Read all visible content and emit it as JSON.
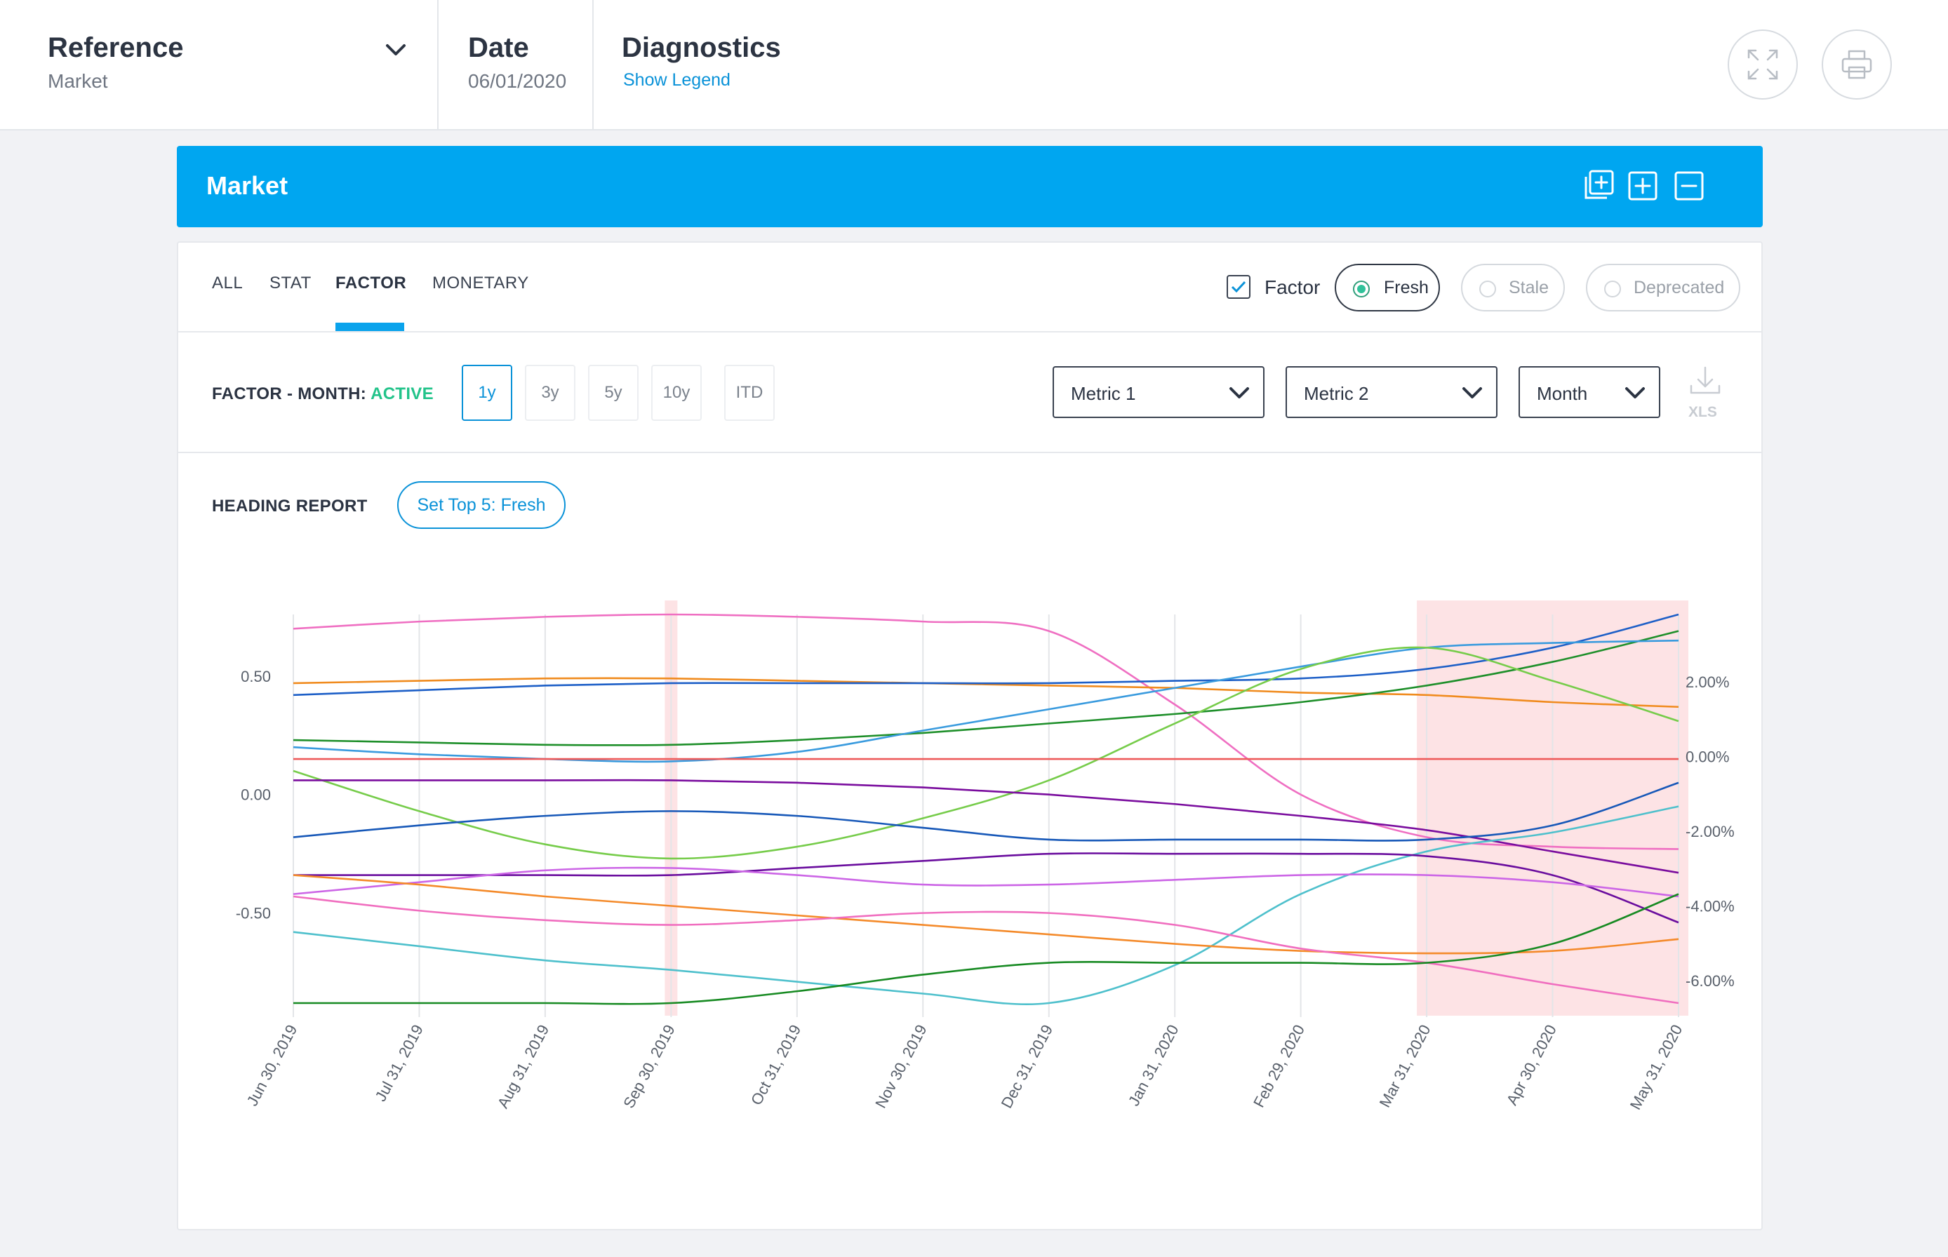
{
  "header": {
    "reference": {
      "title": "Reference",
      "value": "Market"
    },
    "date": {
      "title": "Date",
      "value": "06/01/2020"
    },
    "diagnostics": {
      "title": "Diagnostics",
      "link": "Show Legend"
    },
    "icons": [
      "expand-icon",
      "print-icon"
    ]
  },
  "market_bar": {
    "title": "Market",
    "icons": [
      "add-copy-icon",
      "add-box-icon",
      "remove-box-icon"
    ],
    "color": "#00a6f0"
  },
  "tabs": {
    "items": [
      "ALL",
      "STAT",
      "FACTOR",
      "MONETARY"
    ],
    "active": "FACTOR"
  },
  "filters": {
    "factor_label": "Factor",
    "factor_checked": true,
    "options": [
      {
        "label": "Fresh",
        "selected": true
      },
      {
        "label": "Stale",
        "selected": false
      },
      {
        "label": "Deprecated",
        "selected": false
      }
    ]
  },
  "controls": {
    "label_prefix": "FACTOR - MONTH: ",
    "label_status": "ACTIVE",
    "ranges": [
      "1y",
      "3y",
      "5y",
      "10y",
      "ITD"
    ],
    "active_range": "1y",
    "selects": [
      "Metric 1",
      "Metric 2",
      "Month"
    ],
    "export_label": "XLS"
  },
  "report": {
    "label": "HEADING REPORT",
    "button": "Set Top 5: Fresh"
  },
  "chart_data": {
    "type": "line",
    "x": [
      "Jun 30, 2019",
      "Jul 31, 2019",
      "Aug 31, 2019",
      "Sep 30, 2019",
      "Oct 31, 2019",
      "Nov 30, 2019",
      "Dec 31, 2019",
      "Jan 31, 2020",
      "Feb 29, 2020",
      "Mar 31, 2020",
      "Apr 30, 2020",
      "May 31, 2020"
    ],
    "y_left": {
      "ticks": [
        "0.50",
        "0.00",
        "-0.50"
      ],
      "tick_values": [
        0.5,
        0.0,
        -0.5
      ],
      "range": [
        -0.88,
        0.76
      ]
    },
    "y_right": {
      "ticks": [
        "2.00%",
        "0.00%",
        "-2.00%",
        "-4.00%",
        "-6.00%"
      ],
      "tick_values": [
        2,
        0,
        -2,
        -4,
        -6
      ],
      "range": [
        -6.6,
        3.8
      ]
    },
    "highlight_bands": [
      {
        "from": "Sep 30, 2019",
        "to": "Sep 30, 2019",
        "color": "#fde3e5"
      },
      {
        "from": "Mar 31, 2020",
        "to": "May 31, 2020",
        "color": "#fde3e5"
      }
    ],
    "grid": "vertical",
    "series": [
      {
        "color": "#ef6fc2",
        "values": [
          0.7,
          0.73,
          0.75,
          0.76,
          0.75,
          0.73,
          0.69,
          0.38,
          0.0,
          -0.18,
          -0.22,
          -0.23
        ]
      },
      {
        "color": "#f08b1e",
        "values": [
          0.47,
          0.48,
          0.49,
          0.49,
          0.48,
          0.47,
          0.46,
          0.45,
          0.43,
          0.42,
          0.39,
          0.37
        ]
      },
      {
        "color": "#1d5fc7",
        "values": [
          0.42,
          0.44,
          0.46,
          0.47,
          0.47,
          0.47,
          0.47,
          0.48,
          0.49,
          0.53,
          0.62,
          0.76
        ]
      },
      {
        "color": "#1e8f2a",
        "values": [
          0.23,
          0.22,
          0.21,
          0.21,
          0.23,
          0.26,
          0.3,
          0.34,
          0.39,
          0.46,
          0.56,
          0.69
        ]
      },
      {
        "color": "#3a9bde",
        "values": [
          0.2,
          0.17,
          0.15,
          0.14,
          0.18,
          0.27,
          0.36,
          0.45,
          0.54,
          0.62,
          0.64,
          0.65
        ]
      },
      {
        "color": "#76cc4a",
        "values": [
          0.1,
          -0.07,
          -0.21,
          -0.27,
          -0.22,
          -0.1,
          0.06,
          0.3,
          0.53,
          0.62,
          0.48,
          0.31
        ]
      },
      {
        "color": "#ee5a5a",
        "values": [
          0.15,
          0.15,
          0.15,
          0.15,
          0.15,
          0.15,
          0.15,
          0.15,
          0.15,
          0.15,
          0.15,
          0.15
        ]
      },
      {
        "color": "#7a0d9e",
        "values": [
          0.06,
          0.06,
          0.06,
          0.06,
          0.05,
          0.03,
          0.0,
          -0.04,
          -0.09,
          -0.15,
          -0.24,
          -0.33
        ]
      },
      {
        "color": "#1758b8",
        "values": [
          -0.18,
          -0.13,
          -0.09,
          -0.07,
          -0.09,
          -0.14,
          -0.19,
          -0.19,
          -0.19,
          -0.19,
          -0.13,
          0.05
        ]
      },
      {
        "color": "#4ec0cc",
        "values": [
          -0.58,
          -0.64,
          -0.7,
          -0.74,
          -0.79,
          -0.84,
          -0.88,
          -0.72,
          -0.42,
          -0.24,
          -0.16,
          -0.05
        ]
      },
      {
        "color": "#6a0d9e",
        "values": [
          -0.34,
          -0.34,
          -0.34,
          -0.34,
          -0.31,
          -0.28,
          -0.25,
          -0.25,
          -0.25,
          -0.26,
          -0.34,
          -0.54
        ]
      },
      {
        "color": "#cc66e6",
        "values": [
          -0.42,
          -0.37,
          -0.32,
          -0.31,
          -0.34,
          -0.38,
          -0.38,
          -0.36,
          -0.34,
          -0.34,
          -0.37,
          -0.43
        ]
      },
      {
        "color": "#f48a2a",
        "values": [
          -0.34,
          -0.38,
          -0.43,
          -0.47,
          -0.51,
          -0.55,
          -0.59,
          -0.63,
          -0.66,
          -0.67,
          -0.66,
          -0.61
        ]
      },
      {
        "color": "#f06ebf",
        "values": [
          -0.43,
          -0.49,
          -0.53,
          -0.55,
          -0.53,
          -0.5,
          -0.5,
          -0.55,
          -0.65,
          -0.71,
          -0.8,
          -0.88
        ]
      },
      {
        "color": "#178a22",
        "values": [
          -0.88,
          -0.88,
          -0.88,
          -0.88,
          -0.83,
          -0.76,
          -0.71,
          -0.71,
          -0.71,
          -0.71,
          -0.63,
          -0.42
        ]
      }
    ]
  }
}
